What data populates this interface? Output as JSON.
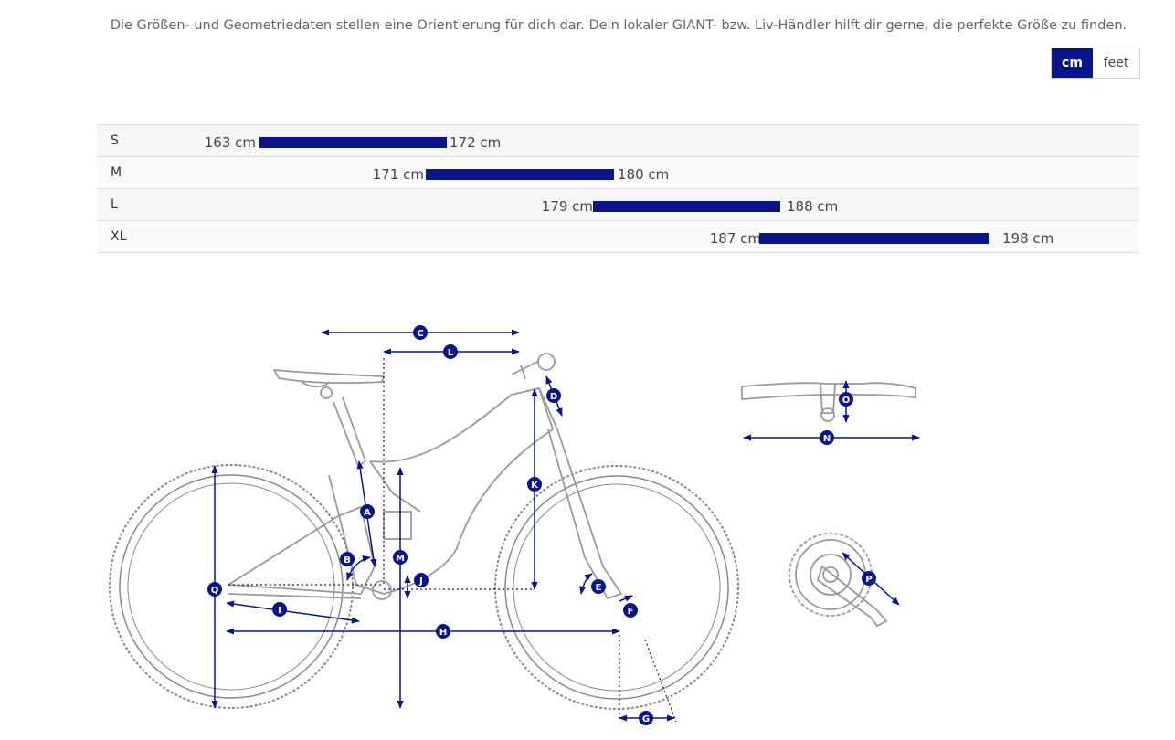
{
  "intro_text": "Die Größen- und Geometriedaten stellen eine Orientierung für dich dar. Dein lokaler GIANT- bzw. Liv-Händler hilft dir gerne, die perfekte Größe zu finden.",
  "units": {
    "cm": "cm",
    "feet": "feet",
    "active": "cm"
  },
  "colors": {
    "accent": "#0a1587",
    "line": "#999999"
  },
  "sizes": [
    {
      "label": "S",
      "min": "163 cm",
      "max": "172 cm",
      "min_value": 163,
      "max_value": 172
    },
    {
      "label": "M",
      "min": "171 cm",
      "max": "180 cm",
      "min_value": 171,
      "max_value": 180
    },
    {
      "label": "L",
      "min": "179 cm",
      "max": "188 cm",
      "min_value": 179,
      "max_value": 188
    },
    {
      "label": "XL",
      "min": "187 cm",
      "max": "198 cm",
      "min_value": 187,
      "max_value": 198
    }
  ],
  "geometry_markers": {
    "A": "A",
    "B": "B",
    "C": "C",
    "D": "D",
    "E": "E",
    "F": "F",
    "G": "G",
    "H": "H",
    "I": "I",
    "J": "J",
    "K": "K",
    "L": "L",
    "M": "M",
    "N": "N",
    "O": "O",
    "P": "P",
    "Q": "Q"
  }
}
